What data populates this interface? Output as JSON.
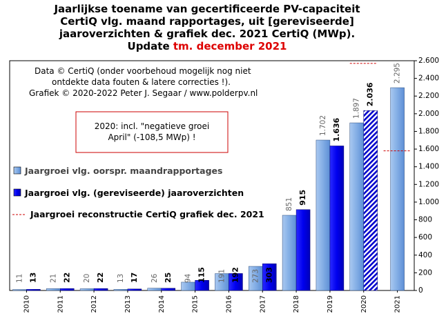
{
  "title": {
    "line1": "Jaarlijkse toename van gecertificeerde PV-capaciteit",
    "line2": "CertiQ vlg. maand rapportages, uit [gereviseerde]",
    "line3": "jaaroverzichten & grafiek dec. 2021 CertiQ (MWp).",
    "line4_prefix": "Update",
    "line4_highlight": "tm. december 2021"
  },
  "credits": {
    "line1": "Data © CertiQ (onder voorbehoud mogelijk  nog niet",
    "line2": "ontdekte data fouten & latere correcties !).",
    "line3": "Grafiek  © 2020-2022 Peter J. Segaar / www.polderpv.nl"
  },
  "note": {
    "line1": "2020: incl. \"negatieve groei",
    "line2": "April\"  (-108,5 MWp) !"
  },
  "colors": {
    "series_monthly": "#7ba7e0",
    "series_revised": "#0000ee",
    "reconstruction": "#cc0000",
    "highlight": "#dd0000"
  },
  "chart_data": {
    "type": "bar",
    "title": "Jaarlijkse toename van gecertificeerde PV-capaciteit CertiQ vlg. maand rapportages, uit [gereviseerde] jaaroverzichten & grafiek dec. 2021 CertiQ (MWp). Update tm. december 2021",
    "categories": [
      "2010",
      "2011",
      "2012",
      "2013",
      "2014",
      "2015",
      "2016",
      "2017",
      "2018",
      "2019",
      "2020",
      "2021"
    ],
    "series": [
      {
        "name": "Jaargroei vlg. oorspr. maandrapportages",
        "values": [
          11,
          21,
          20,
          13,
          26,
          94,
          191,
          273,
          851,
          1702,
          1897,
          2295
        ],
        "labels": [
          "11",
          "21",
          "20",
          "13",
          "26",
          "94",
          "191",
          "273",
          "851",
          "1.702",
          "1.897",
          "2.295"
        ]
      },
      {
        "name": "Jaargroei vlg. (gereviseerde) jaaroverzichten",
        "values": [
          13,
          22,
          22,
          17,
          25,
          115,
          192,
          303,
          915,
          1636,
          2036,
          null
        ],
        "labels": [
          "13",
          "22",
          "22",
          "17",
          "25",
          "115",
          "192",
          "303",
          "915",
          "1.636",
          "2.036",
          ""
        ]
      }
    ],
    "reconstruction": {
      "name": "Jaargroei reconstructie CertiQ grafiek dec. 2021",
      "points": [
        {
          "category": "2020",
          "value": 2570
        },
        {
          "category": "2021",
          "value": 1580
        }
      ]
    },
    "y_axis": {
      "ylim": [
        0,
        2600
      ],
      "ticks": [
        0,
        200,
        400,
        600,
        800,
        1000,
        1200,
        1400,
        1600,
        1800,
        2000,
        2200,
        2400,
        2600
      ],
      "tick_labels": [
        "0",
        "200",
        "400",
        "600",
        "800",
        "1.000",
        "1.200",
        "1.400",
        "1.600",
        "1.800",
        "2.000",
        "2.200",
        "2.400",
        "2.600"
      ],
      "position": "right"
    },
    "legend_placement": "left",
    "grid": false
  }
}
